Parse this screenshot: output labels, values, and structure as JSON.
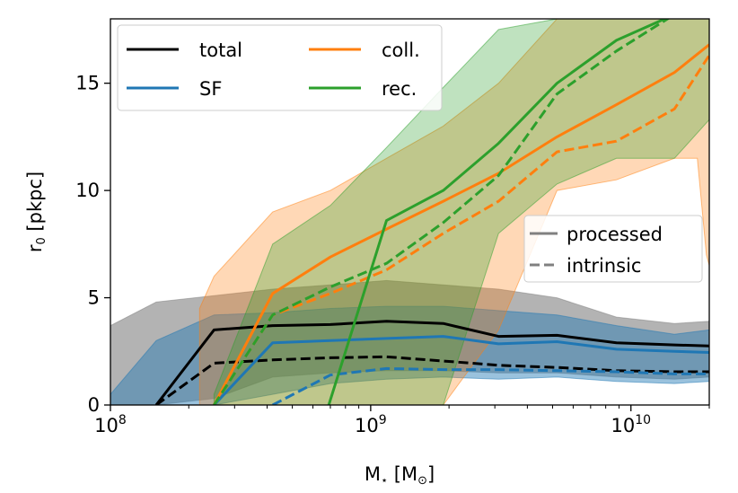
{
  "chart_data": {
    "type": "line",
    "xscale": "log",
    "xlim": [
      100000000,
      20000000000
    ],
    "ylim": [
      0,
      18
    ],
    "xlabel_main": "M",
    "xlabel_sub": "⋆",
    "xlabel_unit_open": " [M",
    "xlabel_unit_sub": "⊙",
    "xlabel_unit_close": "]",
    "ylabel_main": "r",
    "ylabel_sub": "0",
    "ylabel_unit": " [pkpc]",
    "x_ticks": [
      {
        "value": 100000000,
        "base": "10",
        "exp": "8"
      },
      {
        "value": 1000000000,
        "base": "10",
        "exp": "9"
      },
      {
        "value": 10000000000,
        "base": "10",
        "exp": "10"
      }
    ],
    "y_ticks": [
      {
        "value": 0,
        "label": "0"
      },
      {
        "value": 5,
        "label": "5"
      },
      {
        "value": 10,
        "label": "10"
      },
      {
        "value": 15,
        "label": "15"
      }
    ],
    "colors": {
      "total": "#000000",
      "sf": "#1f77b4",
      "coll": "#ff7f0e",
      "rec": "#2ca02c",
      "total_band": "#808080",
      "style_legend": "#808080"
    },
    "series": [
      {
        "key": "total",
        "name": "total",
        "band_x": [
          100000000,
          150000000,
          250000000,
          420000000,
          700000000,
          1150000000,
          1900000000,
          3100000000,
          5200000000,
          8800000000,
          14700000000,
          20000000000
        ],
        "band_lower": [
          0,
          0,
          0.3,
          1.3,
          1.5,
          1.6,
          1.6,
          1.5,
          1.5,
          1.3,
          1.2,
          1.3
        ],
        "band_upper": [
          3.7,
          4.8,
          5.1,
          5.4,
          5.6,
          5.8,
          5.6,
          5.4,
          5.0,
          4.1,
          3.8,
          3.9
        ],
        "processed_x": [
          150000000,
          250000000,
          420000000,
          700000000,
          1150000000,
          1900000000,
          3100000000,
          5200000000,
          8800000000,
          14700000000,
          20000000000
        ],
        "processed_y": [
          0,
          3.5,
          3.7,
          3.75,
          3.9,
          3.8,
          3.2,
          3.25,
          2.9,
          2.8,
          2.75
        ],
        "intrinsic_x": [
          150000000,
          250000000,
          420000000,
          700000000,
          1150000000,
          1900000000,
          3100000000,
          5200000000,
          8800000000,
          14700000000,
          20000000000
        ],
        "intrinsic_y": [
          0,
          1.95,
          2.1,
          2.2,
          2.25,
          2.05,
          1.85,
          1.75,
          1.6,
          1.55,
          1.55
        ]
      },
      {
        "key": "sf",
        "name": "SF",
        "band_x": [
          100000000,
          150000000,
          250000000,
          420000000,
          700000000,
          1150000000,
          1900000000,
          3100000000,
          5200000000,
          8800000000,
          14700000000,
          20000000000
        ],
        "band_lower": [
          0,
          0,
          0,
          0.5,
          1.0,
          1.2,
          1.3,
          1.2,
          1.3,
          1.1,
          1.0,
          1.1
        ],
        "band_upper": [
          0.5,
          3.0,
          4.2,
          4.3,
          4.5,
          4.6,
          4.6,
          4.4,
          4.2,
          3.7,
          3.3,
          3.5
        ],
        "processed_x": [
          250000000,
          420000000,
          700000000,
          1150000000,
          1900000000,
          3100000000,
          5200000000,
          8800000000,
          14700000000,
          20000000000
        ],
        "processed_y": [
          0,
          2.9,
          3.0,
          3.1,
          3.2,
          2.85,
          2.95,
          2.6,
          2.5,
          2.45
        ],
        "intrinsic_x": [
          420000000,
          700000000,
          1150000000,
          1900000000,
          3100000000,
          5200000000,
          8800000000,
          14700000000,
          20000000000
        ],
        "intrinsic_y": [
          0,
          1.4,
          1.7,
          1.65,
          1.65,
          1.6,
          1.55,
          1.45,
          1.45
        ]
      },
      {
        "key": "coll",
        "name": "coll.",
        "band_x": [
          220000000,
          250000000,
          420000000,
          700000000,
          1150000000,
          1900000000,
          3100000000,
          5200000000,
          8800000000,
          14700000000,
          18000000000,
          20000000000
        ],
        "band_lower": [
          0,
          0,
          0,
          0,
          0,
          0,
          3.5,
          10.0,
          10.5,
          11.5,
          11.5,
          13.0
        ],
        "band_upper": [
          4.5,
          6.0,
          9.0,
          10.0,
          11.5,
          13.0,
          15.0,
          18,
          18,
          18,
          18,
          18
        ],
        "band_lower_right": [
          [
            18000000000,
            11.5
          ],
          [
            19500000000,
            7.0
          ],
          [
            20000000000,
            6.5
          ]
        ],
        "processed_x": [
          250000000,
          420000000,
          700000000,
          1150000000,
          1900000000,
          3100000000,
          5200000000,
          8800000000,
          14700000000,
          20000000000
        ],
        "processed_y": [
          0,
          5.2,
          6.9,
          8.2,
          9.5,
          10.8,
          12.5,
          14.0,
          15.5,
          16.8
        ],
        "intrinsic_x": [
          250000000,
          420000000,
          700000000,
          1150000000,
          1900000000,
          3100000000,
          5200000000,
          8800000000,
          14700000000,
          20000000000
        ],
        "intrinsic_y": [
          0,
          4.2,
          5.2,
          6.3,
          8.0,
          9.5,
          11.8,
          12.3,
          13.8,
          16.3
        ]
      },
      {
        "key": "rec",
        "name": "rec.",
        "band_x": [
          250000000,
          420000000,
          700000000,
          1150000000,
          1900000000,
          3100000000,
          5200000000,
          8800000000,
          14700000000,
          20000000000
        ],
        "band_lower": [
          0,
          0,
          0,
          0,
          0,
          8.0,
          10.3,
          11.5,
          11.5,
          13.3
        ],
        "band_upper": [
          0.5,
          7.5,
          9.3,
          12.0,
          14.8,
          17.5,
          18,
          18,
          18,
          18
        ],
        "processed_x": [
          690000000,
          1150000000,
          1900000000,
          3100000000,
          5200000000,
          8800000000,
          14700000000
        ],
        "processed_y": [
          0,
          8.6,
          10.0,
          12.2,
          15.0,
          17.0,
          18.2
        ],
        "intrinsic_x": [
          250000000,
          420000000,
          700000000,
          1150000000,
          1900000000,
          3100000000,
          5200000000,
          8800000000,
          14700000000
        ],
        "intrinsic_y": [
          0,
          4.2,
          5.5,
          6.6,
          8.5,
          10.7,
          14.5,
          16.5,
          18.2
        ]
      }
    ],
    "legend_series": [
      {
        "key": "total",
        "label": "total"
      },
      {
        "key": "sf",
        "label": "SF"
      },
      {
        "key": "coll",
        "label": "coll."
      },
      {
        "key": "rec",
        "label": "rec."
      }
    ],
    "legend_series_placement": "upper-left",
    "legend_styles": [
      {
        "key": "processed",
        "label": "processed",
        "dash": "solid"
      },
      {
        "key": "intrinsic",
        "label": "intrinsic",
        "dash": "dashed"
      }
    ],
    "legend_styles_placement": "center-right"
  }
}
